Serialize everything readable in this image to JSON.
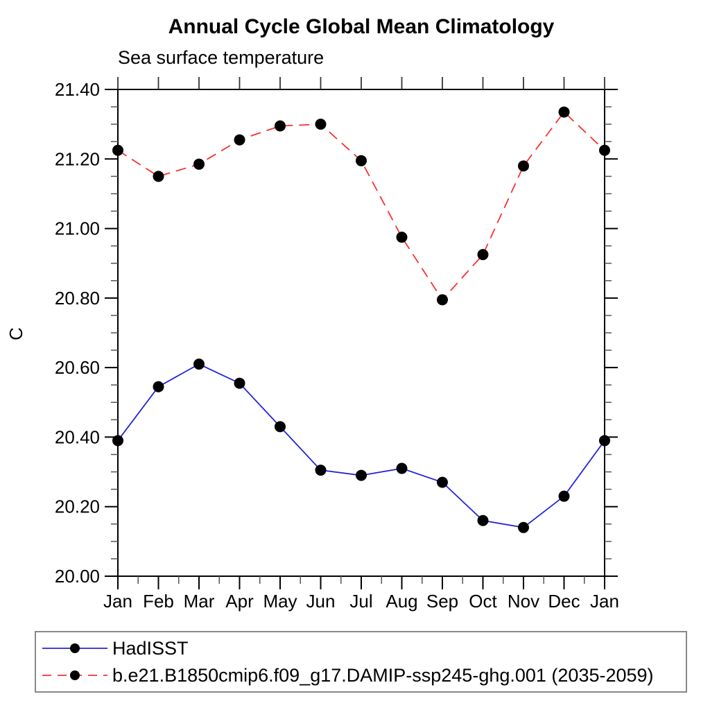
{
  "chart_data": {
    "type": "line",
    "title": "Annual Cycle Global Mean Climatology",
    "subtitle": "Sea surface temperature",
    "ylabel": "C",
    "categories": [
      "Jan",
      "Feb",
      "Mar",
      "Apr",
      "May",
      "Jun",
      "Jul",
      "Aug",
      "Sep",
      "Oct",
      "Nov",
      "Dec",
      "Jan"
    ],
    "ylim": [
      20.0,
      21.4
    ],
    "ytick_major_step": 0.2,
    "ytick_minor_step": 0.05,
    "ytick_labels": [
      "20.00",
      "20.20",
      "20.40",
      "20.60",
      "20.80",
      "21.00",
      "21.20",
      "21.40"
    ],
    "grid": false,
    "legend_position": "bottom-left-boxed",
    "marker": "filled-circle",
    "marker_color": "#000000",
    "series": [
      {
        "name": "HadISST",
        "color": "#2222dd",
        "line_style": "solid",
        "values": [
          20.39,
          20.545,
          20.61,
          20.555,
          20.43,
          20.305,
          20.29,
          20.31,
          20.27,
          20.16,
          20.14,
          20.23,
          20.39
        ]
      },
      {
        "name": "b.e21.B1850cmip6.f09_g17.DAMIP-ssp245-ghg.001 (2035-2059)",
        "color": "#f83030",
        "line_style": "dashed",
        "values": [
          21.225,
          21.15,
          21.185,
          21.255,
          21.295,
          21.3,
          21.195,
          20.975,
          20.795,
          20.925,
          21.18,
          21.335,
          21.225
        ]
      }
    ]
  }
}
